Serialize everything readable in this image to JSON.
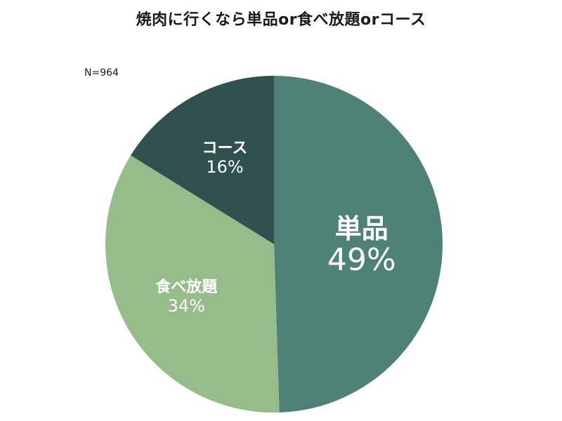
{
  "chart_data": {
    "type": "pie",
    "title": "焼肉に行くなら単品or食べ放題orコース",
    "annotation": "N=964",
    "slices": [
      {
        "label": "単品",
        "value": 49,
        "value_label": "49%",
        "color": "#4e8276"
      },
      {
        "label": "食べ放題",
        "value": 34,
        "value_label": "34%",
        "color": "#95bc89"
      },
      {
        "label": "コース",
        "value": 16,
        "value_label": "16%",
        "color": "#30524f"
      }
    ],
    "start": "12 o'clock",
    "direction": "clockwise",
    "legend": "none"
  }
}
